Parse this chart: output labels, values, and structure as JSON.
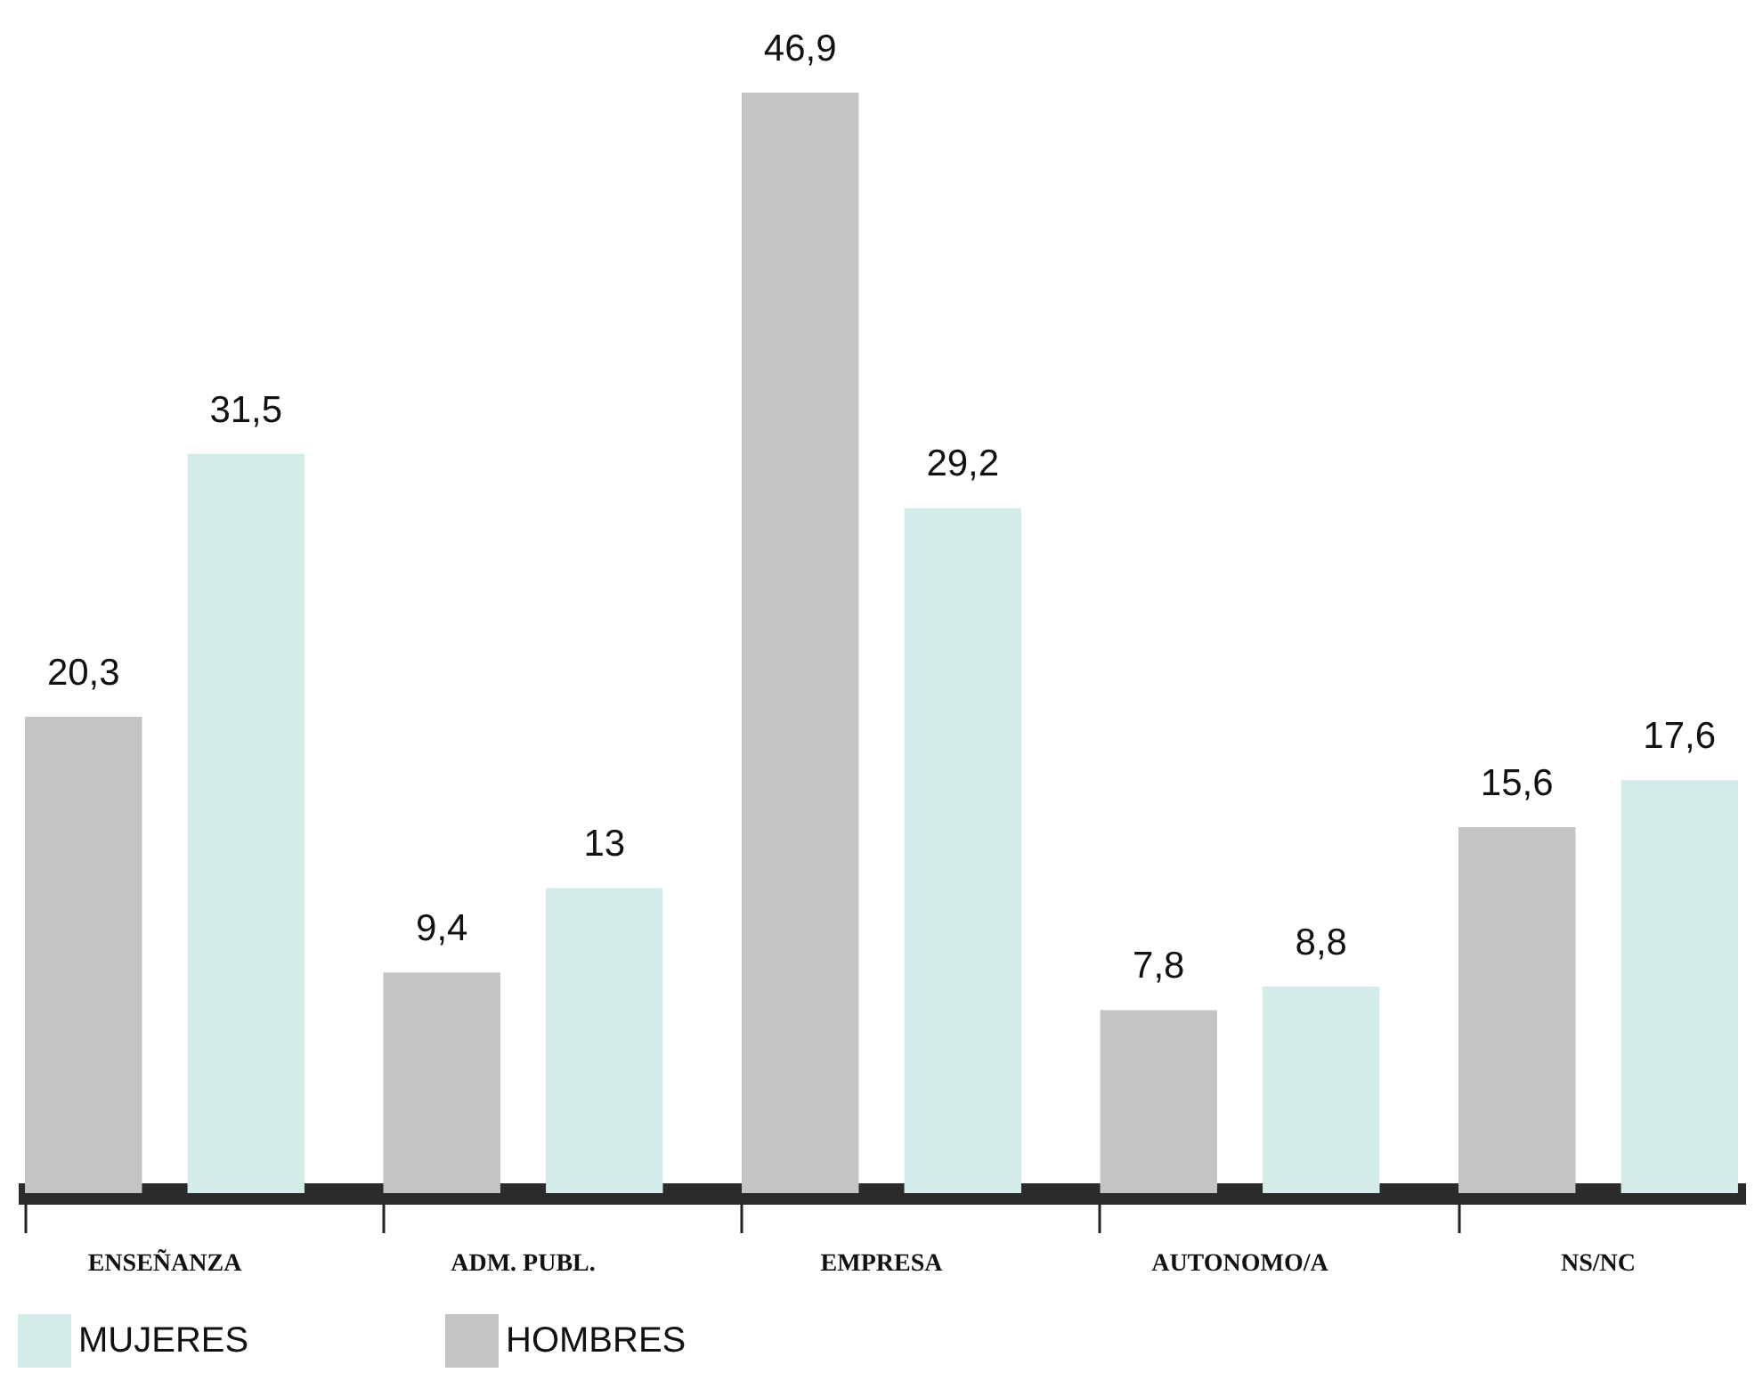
{
  "chart_data": {
    "type": "bar",
    "categories": [
      "ENSEÑANZA",
      "ADM. PUBL.",
      "EMPRESA",
      "AUTONOMO/A",
      "NS/NC"
    ],
    "series": [
      {
        "name": "HOMBRES",
        "color": "#c4c4c4",
        "values": [
          20.3,
          9.4,
          46.9,
          7.8,
          15.6
        ],
        "value_labels": [
          "20,3",
          "9,4",
          "46,9",
          "7,8",
          "15,6"
        ]
      },
      {
        "name": "MUJERES",
        "color": "#d3ece9",
        "values": [
          31.5,
          13,
          29.2,
          8.8,
          17.6
        ],
        "value_labels": [
          "31,5",
          "13",
          "29,2",
          "8,8",
          "17,6"
        ]
      }
    ],
    "legend": "bottom",
    "grid": false
  }
}
